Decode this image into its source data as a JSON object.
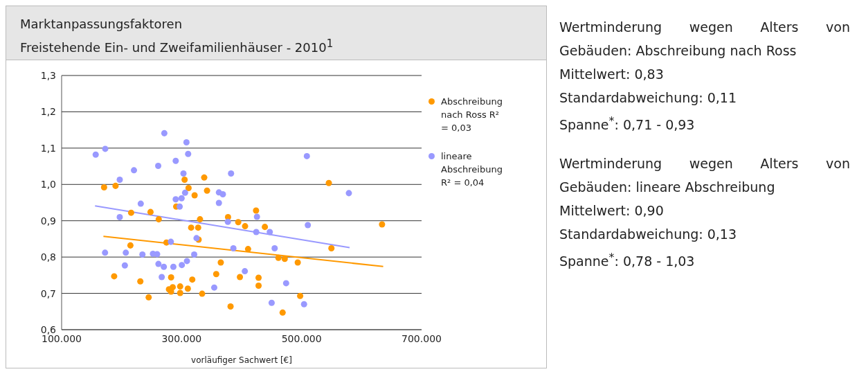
{
  "chart_data": {
    "type": "scatter",
    "title": "Marktanpassungsfaktoren",
    "subtitle": "Freistehende Ein- und Zweifamilienhäuser - 2010$^{1}$",
    "xlabel": "vorläufiger Sachwert [€]",
    "xlim": [
      100000,
      700000
    ],
    "xticks": [
      {
        "value": 100000,
        "label": "100.000"
      },
      {
        "value": 300000,
        "label": "300.000"
      },
      {
        "value": 500000,
        "label": "500.000"
      },
      {
        "value": 700000,
        "label": "700.000"
      }
    ],
    "ylim": [
      0.6,
      1.3
    ],
    "yticks": [
      {
        "value": 0.6,
        "label": "0,6"
      },
      {
        "value": 0.7,
        "label": "0,7"
      },
      {
        "value": 0.8,
        "label": "0,8"
      },
      {
        "value": 0.9,
        "label": "0,9"
      },
      {
        "value": 1.0,
        "label": "1,0"
      },
      {
        "value": 1.1,
        "label": "1,1"
      },
      {
        "value": 1.2,
        "label": "1,2"
      },
      {
        "value": 1.3,
        "label": "1,3"
      }
    ],
    "grid": "y",
    "legend": "right",
    "marker": "circle",
    "series": [
      {
        "name": "Abschreibung nach Ross R² = 0,03",
        "color": "#ff9900",
        "x": [
          170800,
          189900,
          305000,
          337700,
          311600,
          342400,
          321700,
          291000,
          215900,
          248200,
          261900,
          330700,
          315900,
          327600,
          377400,
          394400,
          405800,
          328400,
          274700,
          214700,
          410800,
          365300,
          357700,
          187600,
          231200,
          282500,
          317800,
          397200,
          278900,
          285200,
          282400,
          297600,
          297600,
          310400,
          334200,
          245100,
          381600,
          424100,
          438800,
          461400,
          471900,
          493600,
          428300,
          428300,
          497600,
          468400,
          545400,
          549700,
          634100
        ],
        "values": [
          0.992,
          0.996,
          1.013,
          1.019,
          0.99,
          0.983,
          0.97,
          0.939,
          0.922,
          0.924,
          0.904,
          0.904,
          0.881,
          0.881,
          0.91,
          0.896,
          0.885,
          0.848,
          0.84,
          0.832,
          0.822,
          0.785,
          0.753,
          0.747,
          0.733,
          0.744,
          0.738,
          0.745,
          0.711,
          0.717,
          0.705,
          0.719,
          0.701,
          0.713,
          0.699,
          0.689,
          0.664,
          0.928,
          0.883,
          0.798,
          0.795,
          0.785,
          0.743,
          0.721,
          0.693,
          0.647,
          1.004,
          0.824,
          0.89
        ]
      },
      {
        "name": "lineare Abschreibung R² = 0,04",
        "color": "#9999ff",
        "x": [
          156800,
          172700,
          271200,
          308100,
          310900,
          290200,
          261000,
          220600,
          196900,
          303100,
          382400,
          305800,
          300000,
          290200,
          296800,
          362200,
          368800,
          362200,
          231900,
          196900,
          377100,
          282100,
          324900,
          172400,
          207000,
          234700,
          252200,
          259200,
          321000,
          386300,
          205400,
          261400,
          270400,
          286300,
          300400,
          308900,
          405400,
          266900,
          354400,
          508800,
          578800,
          425600,
          424400,
          447000,
          510400,
          455100,
          474200,
          450100,
          504100
        ],
        "values": [
          1.082,
          1.098,
          1.141,
          1.116,
          1.084,
          1.065,
          1.051,
          1.039,
          1.013,
          1.03,
          1.03,
          0.977,
          0.962,
          0.959,
          0.939,
          0.978,
          0.973,
          0.949,
          0.947,
          0.91,
          0.897,
          0.842,
          0.852,
          0.812,
          0.812,
          0.807,
          0.809,
          0.808,
          0.807,
          0.824,
          0.777,
          0.781,
          0.773,
          0.773,
          0.778,
          0.789,
          0.761,
          0.745,
          0.716,
          1.078,
          0.976,
          0.911,
          0.869,
          0.869,
          0.888,
          0.824,
          0.728,
          0.674,
          0.67
        ]
      },
      {
        "type": "line",
        "marker": "none",
        "color": "#ff9900",
        "x": [
          169700,
          636000
        ],
        "values": [
          0.857,
          0.774
        ]
      },
      {
        "type": "line",
        "marker": "none",
        "color": "#9999ff",
        "x": [
          155700,
          580000
        ],
        "values": [
          0.941,
          0.826
        ]
      }
    ],
    "annotations": [
      "Wertminderung wegen Alters von Gebäuden: Abschreibung nach Ross",
      "Mittelwert: 0,83",
      "Standardabweichung: 0,11",
      "Spanne$^{*}$: 0,71 - 0,93",
      "Wertminderung wegen Alters von Gebäuden: lineare Abschreibung",
      "Mittelwert: 0,90",
      "Standardabweichung: 0,13",
      "Spanne$^{*}$: 0,78 - 1,03"
    ]
  }
}
